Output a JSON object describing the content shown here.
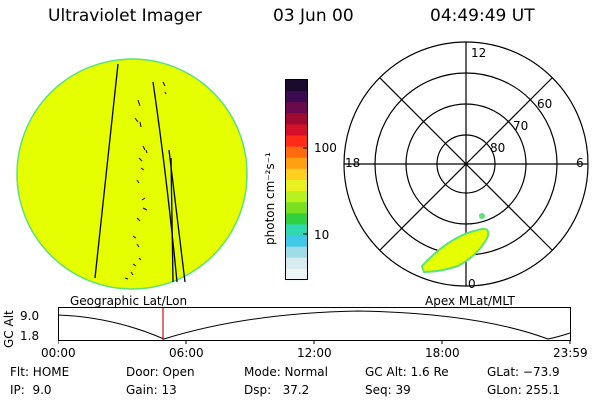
{
  "header": {
    "instrument": "Ultraviolet Imager",
    "date": "03 Jun 00",
    "time": "04:49:49 UT"
  },
  "colorbar": {
    "unit_label": "photon cm⁻²s⁻¹",
    "ticks": [
      "100",
      "10"
    ],
    "colors": [
      "#1a0a2e",
      "#3c0a50",
      "#6a0a4c",
      "#a00a30",
      "#d4102a",
      "#ff2a1a",
      "#ff6a10",
      "#ffa010",
      "#ffd020",
      "#e8f020",
      "#b8f020",
      "#7ae020",
      "#30d040",
      "#30d8b0",
      "#40c8e8",
      "#a0dce8",
      "#d8ecf0",
      "#eef4f6"
    ]
  },
  "geo_view": {
    "label": "Geographic Lat/Lon",
    "disk_color": "#e6ff00",
    "rim_color": "#5ee07a"
  },
  "polar_view": {
    "label": "Apex MLat/MLT",
    "mlt_labels": {
      "top": "12",
      "left": "18",
      "right": "6",
      "bottom": "0"
    },
    "lat_labels": [
      "60",
      "70",
      "80"
    ],
    "auroral_fill": "#e6ff00",
    "auroral_edge": "#5ee07a"
  },
  "altitude_plot": {
    "ylabel": "GC Alt",
    "ymax_label": "9.0",
    "ymin_label": "1.8",
    "xticks": [
      "00:00",
      "06:00",
      "12:00",
      "18:00",
      "23:59"
    ],
    "marker_color": "#d01010"
  },
  "status": {
    "flt": "Flt: HOME",
    "ip": "IP:  9.0",
    "door": "Door: Open",
    "gain": "Gain: 13",
    "mode": "Mode: Normal",
    "dsp": "Dsp:   37.2",
    "gcalt": "GC Alt: 1.6 Re",
    "seq": "Seq: 39",
    "glat": "GLat: −73.9",
    "glon": "GLon: 255.1"
  }
}
